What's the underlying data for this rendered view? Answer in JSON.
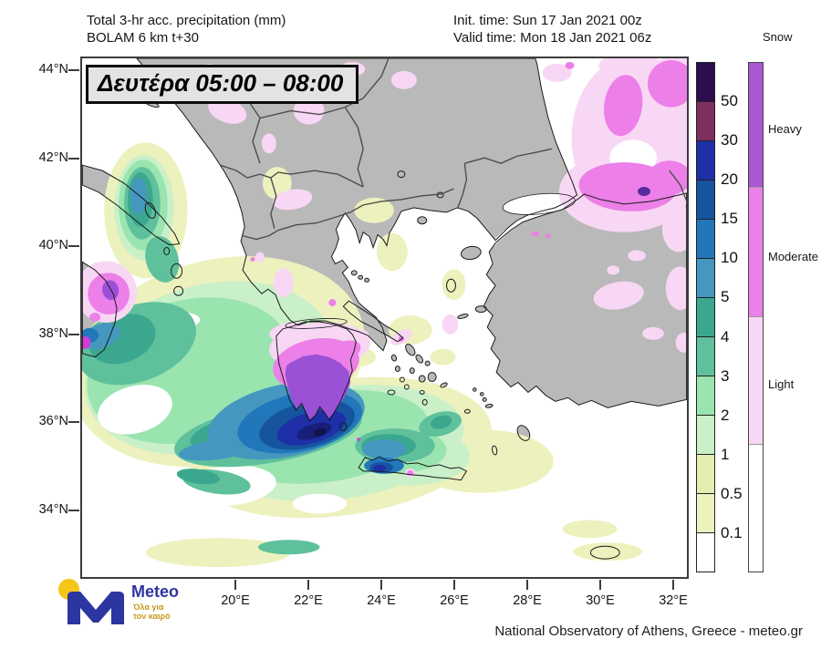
{
  "header": {
    "title_line1": "Total 3-hr acc. precipitation (mm)",
    "title_line2": "BOLAM 6 km t+30",
    "init_time": "Init. time: Sun 17 Jan 2021 00z",
    "valid_time": "Valid time: Mon 18 Jan 2021 06z"
  },
  "map": {
    "time_label": "Δευτέρα 05:00 – 08:00",
    "y_axis_labels": [
      "44°N",
      "42°N",
      "40°N",
      "38°N",
      "36°N",
      "34°N"
    ],
    "x_axis_labels": [
      "20°E",
      "22°E",
      "24°E",
      "26°E",
      "28°E",
      "30°E",
      "32°E"
    ]
  },
  "legend": {
    "precip": {
      "unit": "mm",
      "labels": [
        "50",
        "30",
        "20",
        "15",
        "10",
        "5",
        "4",
        "3",
        "2",
        "1",
        "0.5",
        "0.1"
      ],
      "colors_top_to_bottom": [
        "#2d0d4d",
        "#7d3060",
        "#1e2fa8",
        "#16549e",
        "#2277bb",
        "#4697c0",
        "#3ba78f",
        "#5fc09c",
        "#9ae4b0",
        "#c9f0c9",
        "#e2edb0",
        "#edf1bd",
        "#ffffff"
      ]
    },
    "snow": {
      "title": "Snow",
      "labels": [
        "Heavy",
        "Moderate",
        "Light"
      ],
      "colors_top_to_bottom": [
        "#a957d3",
        "#ec7fe8",
        "#f8d7f4",
        "#ffffff"
      ]
    }
  },
  "footer": {
    "logo_name": "Meteo",
    "logo_tagline_1": "Όλα για",
    "logo_tagline_2": "τον καιρό",
    "attribution": "National Observatory of Athens, Greece - meteo.gr"
  }
}
